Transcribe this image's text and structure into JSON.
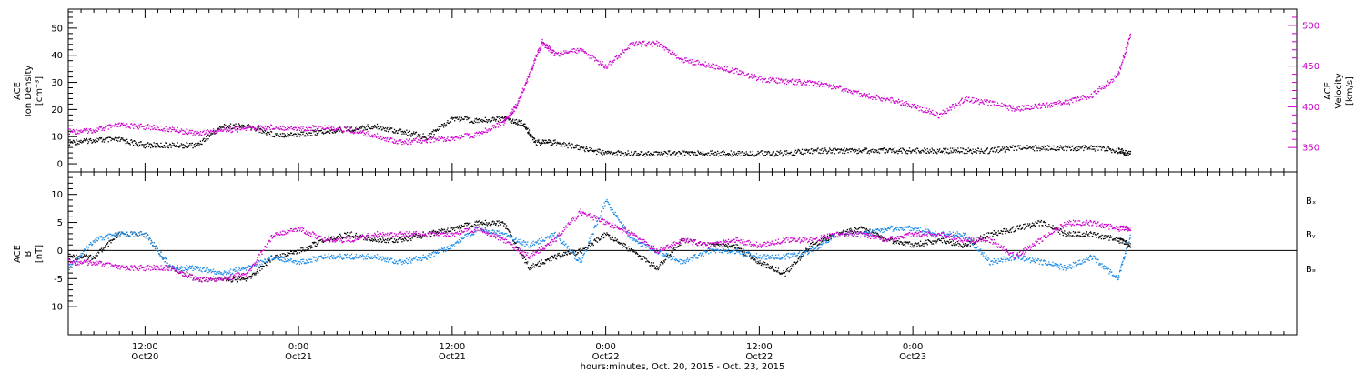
{
  "chart_data": [
    {
      "type": "scatter",
      "panel": "plasma",
      "ylabel_left": [
        "ACE",
        "Ion Density",
        "[cm⁻³]"
      ],
      "ylabel_right": [
        "ACE",
        "Velocity",
        "[km/s]"
      ],
      "ylim_left": [
        -3,
        57
      ],
      "ylim_right": [
        320,
        520
      ],
      "yticks_left": [
        "0",
        "10",
        "20",
        "30",
        "40",
        "50"
      ],
      "yticks_right": [
        "350",
        "400",
        "450",
        "500"
      ],
      "colors": {
        "density": "#000000",
        "velocity": "#cc00cc"
      },
      "series": [
        {
          "key": "density",
          "axis": "left",
          "x": [
            0,
            2,
            4,
            6,
            8,
            10,
            12,
            14,
            16,
            18,
            20,
            22,
            24,
            26,
            28,
            30,
            32,
            34,
            35.5,
            36.5,
            38,
            40,
            42,
            44,
            46,
            48,
            50,
            52,
            54,
            56,
            58,
            60,
            62,
            64,
            66,
            68,
            70,
            72,
            74,
            76,
            78,
            80,
            82,
            83
          ],
          "y": [
            8,
            9,
            9,
            7,
            7,
            7,
            14,
            14,
            11,
            11,
            12,
            13,
            14,
            12,
            10,
            17,
            16,
            17,
            15,
            8,
            8,
            6,
            4,
            4,
            4,
            4,
            4,
            4,
            4,
            4,
            5,
            5,
            5,
            5,
            5,
            5,
            5,
            5,
            6,
            6,
            6,
            6,
            5,
            4
          ]
        },
        {
          "key": "velocity",
          "axis": "right",
          "x": [
            0,
            2,
            4,
            6,
            8,
            10,
            12,
            14,
            16,
            18,
            20,
            22,
            24,
            26,
            28,
            30,
            32,
            34,
            35,
            36,
            37,
            38,
            40,
            42,
            44,
            46,
            48,
            50,
            52,
            54,
            56,
            58,
            60,
            62,
            64,
            66,
            68,
            70,
            72,
            74,
            76,
            78,
            80,
            82,
            83
          ],
          "y": [
            370,
            372,
            378,
            376,
            373,
            368,
            372,
            374,
            376,
            374,
            375,
            372,
            365,
            357,
            360,
            362,
            367,
            382,
            402,
            440,
            480,
            465,
            470,
            450,
            478,
            478,
            458,
            452,
            445,
            435,
            432,
            430,
            425,
            415,
            410,
            402,
            390,
            410,
            405,
            398,
            402,
            406,
            415,
            440,
            490
          ]
        }
      ]
    },
    {
      "type": "scatter",
      "panel": "magnetic-field",
      "ylabel_left": [
        "ACE",
        "B",
        "[nT]"
      ],
      "ylim": [
        -15,
        14
      ],
      "yticks": [
        "-10",
        "-5",
        "0",
        "5",
        "10"
      ],
      "legend": [
        "Bₓ",
        "Bᵧ",
        "Bₔ"
      ],
      "colors": {
        "bx": "#000000",
        "by": "#1a8ae6",
        "bz": "#cc00cc"
      },
      "series": [
        {
          "key": "bx",
          "x": [
            0,
            2,
            4,
            6,
            8,
            10,
            12,
            14,
            16,
            18,
            20,
            22,
            24,
            26,
            28,
            30,
            32,
            34,
            36,
            38,
            40,
            42,
            44,
            46,
            48,
            50,
            52,
            54,
            56,
            58,
            60,
            62,
            64,
            66,
            68,
            70,
            72,
            74,
            76,
            78,
            80,
            82,
            83
          ],
          "y": [
            -1,
            -1,
            3,
            3,
            -3,
            -5,
            -5,
            -5,
            -1,
            0,
            2,
            3,
            2,
            2,
            3,
            4,
            5,
            5,
            -3,
            -1,
            0,
            3,
            0,
            -3,
            2,
            1,
            1,
            -2,
            -4,
            1,
            3,
            4,
            2,
            1,
            2,
            1,
            3,
            4,
            5,
            3,
            3,
            2,
            1
          ]
        },
        {
          "key": "by",
          "x": [
            0,
            2,
            4,
            6,
            8,
            10,
            12,
            14,
            16,
            18,
            20,
            22,
            24,
            26,
            28,
            30,
            32,
            34,
            36,
            38,
            40,
            42,
            44,
            46,
            48,
            50,
            52,
            54,
            56,
            58,
            60,
            62,
            64,
            66,
            68,
            70,
            72,
            74,
            76,
            78,
            80,
            82,
            83
          ],
          "y": [
            -3,
            2,
            3,
            3,
            -3,
            -3,
            -4,
            -3,
            -1,
            -2,
            -1,
            -1,
            -1,
            -2,
            -1,
            1,
            4,
            3,
            1,
            3,
            -2,
            9,
            2,
            0,
            -2,
            0,
            0,
            -1,
            -1,
            0,
            3,
            3,
            4,
            4,
            3,
            3,
            -2,
            -1,
            -2,
            -3,
            -1,
            -5,
            3
          ]
        },
        {
          "key": "bz",
          "x": [
            0,
            2,
            4,
            6,
            8,
            10,
            12,
            14,
            16,
            18,
            20,
            22,
            24,
            26,
            28,
            30,
            32,
            34,
            36,
            38,
            40,
            42,
            44,
            46,
            48,
            50,
            52,
            54,
            56,
            58,
            60,
            62,
            64,
            66,
            68,
            70,
            72,
            74,
            76,
            78,
            80,
            82,
            83
          ],
          "y": [
            -2,
            -2,
            -3,
            -3,
            -3,
            -5,
            -5,
            -4,
            3,
            4,
            2,
            2,
            3,
            3,
            3,
            3,
            4,
            2,
            -1,
            2,
            7,
            5,
            3,
            0,
            2,
            1,
            2,
            1,
            2,
            2,
            3,
            3,
            2,
            3,
            3,
            2,
            2,
            -1,
            2,
            5,
            5,
            4,
            4
          ]
        }
      ]
    }
  ],
  "x_axis": {
    "unit": "hours since Oct 20, 2015 06:00",
    "xlim": [
      0,
      96
    ],
    "ticks": [
      {
        "x": 6,
        "label": "12:00",
        "sublabel": "Oct20"
      },
      {
        "x": 18,
        "label": "0:00",
        "sublabel": "Oct21"
      },
      {
        "x": 30,
        "label": "12:00",
        "sublabel": "Oct21"
      },
      {
        "x": 42,
        "label": "0:00",
        "sublabel": "Oct22"
      },
      {
        "x": 54,
        "label": "12:00",
        "sublabel": "Oct22"
      },
      {
        "x": 66,
        "label": "0:00",
        "sublabel": "Oct23"
      }
    ],
    "title": "hours:minutes, Oct. 20, 2015 - Oct. 23, 2015"
  }
}
